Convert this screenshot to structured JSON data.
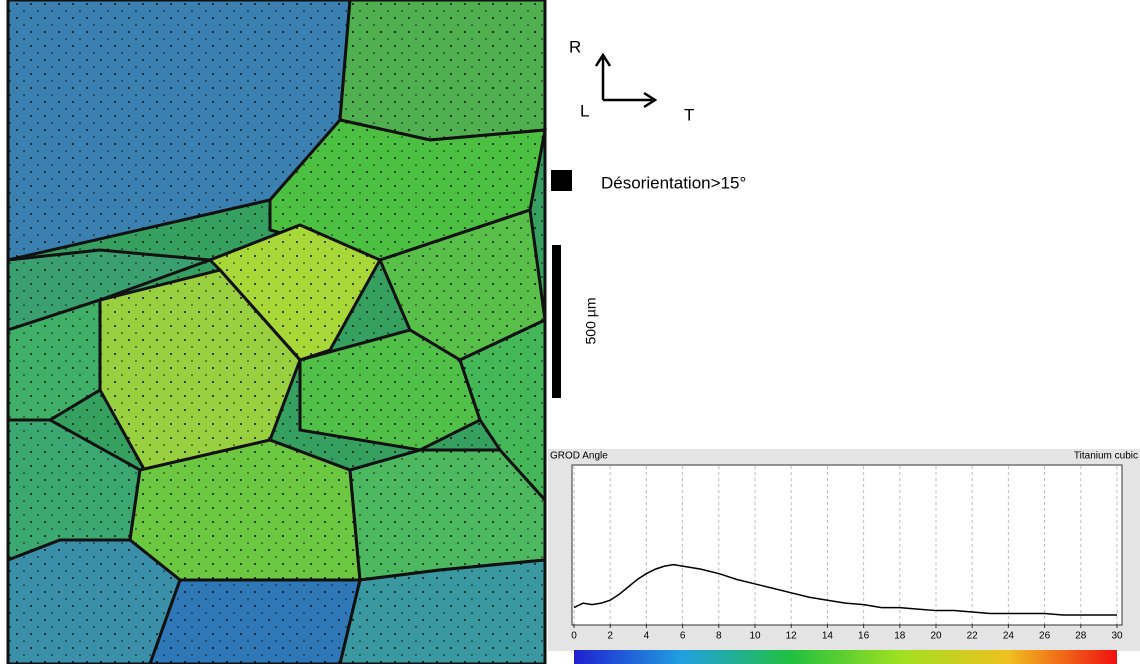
{
  "figure": {
    "direction_r": "R",
    "direction_l": "L",
    "direction_t": "T",
    "boundary_legend": "Désorientation>15°",
    "scale_bar": "500 µm"
  },
  "chart_data": {
    "type": "line",
    "title": "GROD Angle",
    "subtitle": "Titanium cubic",
    "x": [
      0,
      0.5,
      1,
      1.5,
      2,
      2.5,
      3,
      3.5,
      4,
      4.5,
      5,
      5.5,
      6,
      7,
      8,
      9,
      10,
      11,
      12,
      13,
      14,
      15,
      16,
      17,
      18,
      19,
      20,
      21,
      22,
      23,
      24,
      25,
      26,
      27,
      28,
      29,
      30
    ],
    "series": [
      {
        "name": "GROD Angle",
        "color": "#000000",
        "values": [
          0.05,
          0.08,
          0.07,
          0.08,
          0.1,
          0.14,
          0.19,
          0.24,
          0.28,
          0.31,
          0.33,
          0.34,
          0.33,
          0.31,
          0.28,
          0.24,
          0.21,
          0.18,
          0.15,
          0.12,
          0.1,
          0.08,
          0.07,
          0.05,
          0.05,
          0.04,
          0.03,
          0.03,
          0.02,
          0.01,
          0.01,
          0.01,
          0.01,
          0,
          0,
          0,
          0
        ]
      }
    ],
    "xlim": [
      0,
      30
    ],
    "ylim": [
      0,
      1
    ],
    "xticks": [
      0,
      2,
      4,
      6,
      8,
      10,
      12,
      14,
      16,
      18,
      20,
      22,
      24,
      26,
      28,
      30
    ],
    "grid": true
  }
}
